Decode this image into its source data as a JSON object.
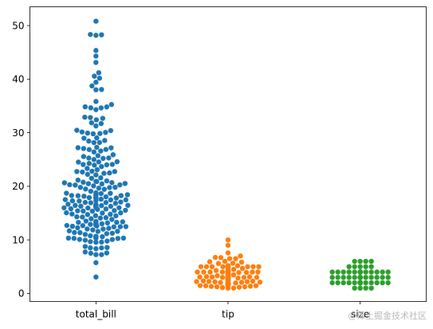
{
  "chart_data": {
    "type": "scatter",
    "subtype": "swarm",
    "title": "",
    "xlabel": "",
    "ylabel": "",
    "categories": [
      "total_bill",
      "tip",
      "size"
    ],
    "ylim": [
      -1.5,
      53.5
    ],
    "yticks": [
      0,
      10,
      20,
      30,
      40,
      50
    ],
    "grid": false,
    "legend": "none",
    "series": [
      {
        "category": "total_bill",
        "color": "#1f77b4",
        "values": [
          3.07,
          5.75,
          7.25,
          7.25,
          7.51,
          7.56,
          7.74,
          8.35,
          8.51,
          8.52,
          8.58,
          8.77,
          9.55,
          9.6,
          9.68,
          9.78,
          9.94,
          10.07,
          10.09,
          10.27,
          10.29,
          10.33,
          10.33,
          10.34,
          10.34,
          10.51,
          10.59,
          10.63,
          10.65,
          10.77,
          11.02,
          11.17,
          11.24,
          11.35,
          11.38,
          11.59,
          11.61,
          11.69,
          11.87,
          12.02,
          12.03,
          12.16,
          12.26,
          12.43,
          12.46,
          12.48,
          12.54,
          12.6,
          12.66,
          12.69,
          12.74,
          12.76,
          12.9,
          13.0,
          13.03,
          13.13,
          13.16,
          13.27,
          13.28,
          13.37,
          13.39,
          13.42,
          13.42,
          13.51,
          13.81,
          13.94,
          14.07,
          14.15,
          14.26,
          14.31,
          14.48,
          14.52,
          14.73,
          14.78,
          14.83,
          15.01,
          15.04,
          15.06,
          15.36,
          15.38,
          15.42,
          15.48,
          15.53,
          15.69,
          15.77,
          15.81,
          15.95,
          15.98,
          16.0,
          16.04,
          16.21,
          16.27,
          16.29,
          16.31,
          16.32,
          16.4,
          16.43,
          16.45,
          16.47,
          16.49,
          16.58,
          16.66,
          16.82,
          16.93,
          16.97,
          16.99,
          17.07,
          17.26,
          17.29,
          17.31,
          17.46,
          17.47,
          17.51,
          17.59,
          17.78,
          17.81,
          17.82,
          17.89,
          17.92,
          18.04,
          18.15,
          18.24,
          18.26,
          18.28,
          18.29,
          18.35,
          18.43,
          18.64,
          18.69,
          18.71,
          18.78,
          19.08,
          19.44,
          19.49,
          19.65,
          19.77,
          19.81,
          19.82,
          20.08,
          20.23,
          20.27,
          20.29,
          20.45,
          20.49,
          20.53,
          20.65,
          20.69,
          20.76,
          20.9,
          20.92,
          21.01,
          21.16,
          21.5,
          21.58,
          22.12,
          22.23,
          22.42,
          22.49,
          22.67,
          22.75,
          22.76,
          22.82,
          23.1,
          23.33,
          23.68,
          23.95,
          24.01,
          24.06,
          24.08,
          24.27,
          24.52,
          24.55,
          24.59,
          25.0,
          25.21,
          25.28,
          25.29,
          25.56,
          25.71,
          25.89,
          26.41,
          26.59,
          26.86,
          26.88,
          27.05,
          27.18,
          27.2,
          27.28,
          28.15,
          28.17,
          28.44,
          28.55,
          28.97,
          29.03,
          29.8,
          29.85,
          29.93,
          30.06,
          30.14,
          30.4,
          30.46,
          31.27,
          31.71,
          31.85,
          32.4,
          32.68,
          32.83,
          32.9,
          34.3,
          34.63,
          34.65,
          34.81,
          34.83,
          35.26,
          35.83,
          38.01,
          38.07,
          38.73,
          39.42,
          40.17,
          40.55,
          41.19,
          43.11,
          44.3,
          45.35,
          48.17,
          48.27,
          48.33,
          50.81
        ]
      },
      {
        "category": "tip",
        "color": "#ff7f0e",
        "values": [
          1.0,
          1.01,
          1.1,
          1.17,
          1.25,
          1.25,
          1.32,
          1.36,
          1.44,
          1.45,
          1.47,
          1.48,
          1.5,
          1.5,
          1.5,
          1.5,
          1.5,
          1.56,
          1.57,
          1.58,
          1.61,
          1.63,
          1.64,
          1.64,
          1.66,
          1.66,
          1.67,
          1.68,
          1.71,
          1.73,
          1.76,
          1.8,
          1.83,
          1.92,
          1.96,
          1.97,
          1.98,
          2.0,
          2.0,
          2.0,
          2.0,
          2.0,
          2.0,
          2.0,
          2.0,
          2.0,
          2.0,
          2.0,
          2.0,
          2.0,
          2.0,
          2.0,
          2.0,
          2.0,
          2.0,
          2.0,
          2.0,
          2.0,
          2.0,
          2.0,
          2.0,
          2.0,
          2.0,
          2.0,
          2.0,
          2.0,
          2.0,
          2.0,
          2.0,
          2.0,
          2.0,
          2.0,
          2.0,
          2.0,
          2.01,
          2.02,
          2.03,
          2.05,
          2.09,
          2.1,
          2.12,
          2.18,
          2.2,
          2.23,
          2.24,
          2.3,
          2.31,
          2.34,
          2.45,
          2.47,
          2.5,
          2.5,
          2.5,
          2.5,
          2.5,
          2.5,
          2.52,
          2.54,
          2.55,
          2.56,
          2.6,
          2.61,
          2.64,
          2.71,
          2.72,
          2.74,
          2.75,
          2.83,
          2.88,
          2.92,
          3.0,
          3.0,
          3.0,
          3.0,
          3.0,
          3.0,
          3.0,
          3.0,
          3.0,
          3.0,
          3.0,
          3.0,
          3.0,
          3.0,
          3.0,
          3.0,
          3.0,
          3.0,
          3.0,
          3.0,
          3.0,
          3.0,
          3.0,
          3.0,
          3.0,
          3.0,
          3.0,
          3.0,
          3.0,
          3.0,
          3.0,
          3.0,
          3.02,
          3.06,
          3.08,
          3.09,
          3.11,
          3.12,
          3.14,
          3.15,
          3.16,
          3.18,
          3.21,
          3.23,
          3.25,
          3.27,
          3.31,
          3.35,
          3.39,
          3.4,
          3.41,
          3.48,
          3.48,
          3.5,
          3.5,
          3.5,
          3.5,
          3.5,
          3.51,
          3.52,
          3.55,
          3.6,
          3.61,
          3.68,
          3.71,
          3.71,
          3.76,
          3.76,
          3.9,
          3.92,
          4.0,
          4.0,
          4.0,
          4.0,
          4.0,
          4.0,
          4.0,
          4.0,
          4.0,
          4.0,
          4.0,
          4.0,
          4.06,
          4.08,
          4.19,
          4.2,
          4.29,
          4.3,
          4.34,
          4.5,
          4.67,
          4.71,
          4.73,
          5.0,
          5.0,
          5.0,
          5.0,
          5.0,
          5.0,
          5.0,
          5.0,
          5.0,
          5.0,
          5.07,
          5.14,
          5.15,
          5.16,
          5.17,
          5.2,
          5.6,
          5.65,
          5.85,
          5.92,
          6.0,
          6.5,
          6.5,
          6.7,
          6.73,
          7.0,
          7.58,
          9.0,
          10.0
        ]
      },
      {
        "category": "size",
        "color": "#2ca02c",
        "counts": {
          "1": 4,
          "2": 156,
          "3": 38,
          "4": 37,
          "5": 5,
          "6": 4
        }
      }
    ]
  },
  "watermark": "@稀土掘金技术社区"
}
